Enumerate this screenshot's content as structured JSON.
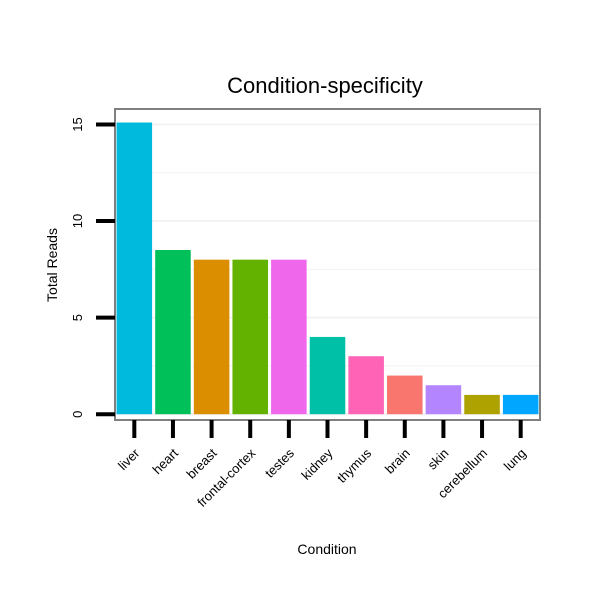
{
  "chart_data": {
    "type": "bar",
    "title": "Condition-specificity",
    "xlabel": "Condition",
    "ylabel": "Total Reads",
    "categories": [
      "liver",
      "heart",
      "breast",
      "frontal-cortex",
      "testes",
      "kidney",
      "thymus",
      "brain",
      "skin",
      "cerebellum",
      "lung"
    ],
    "values": [
      15.1,
      8.5,
      8.0,
      8.0,
      8.0,
      4.0,
      3.0,
      2.0,
      1.5,
      1.0,
      1.0
    ],
    "colors": [
      "#00BADE",
      "#00C05A",
      "#DB8E00",
      "#64B200",
      "#EF67EB",
      "#00C1A7",
      "#FF63B6",
      "#F8766D",
      "#B385FF",
      "#AEA200",
      "#00A6FF"
    ],
    "ylim": [
      -0.3,
      15.8
    ],
    "yticks": [
      0,
      5,
      10,
      15
    ],
    "ytick_labels": [
      "0",
      "5",
      "10",
      "15"
    ],
    "grid": true,
    "legend": "none"
  }
}
